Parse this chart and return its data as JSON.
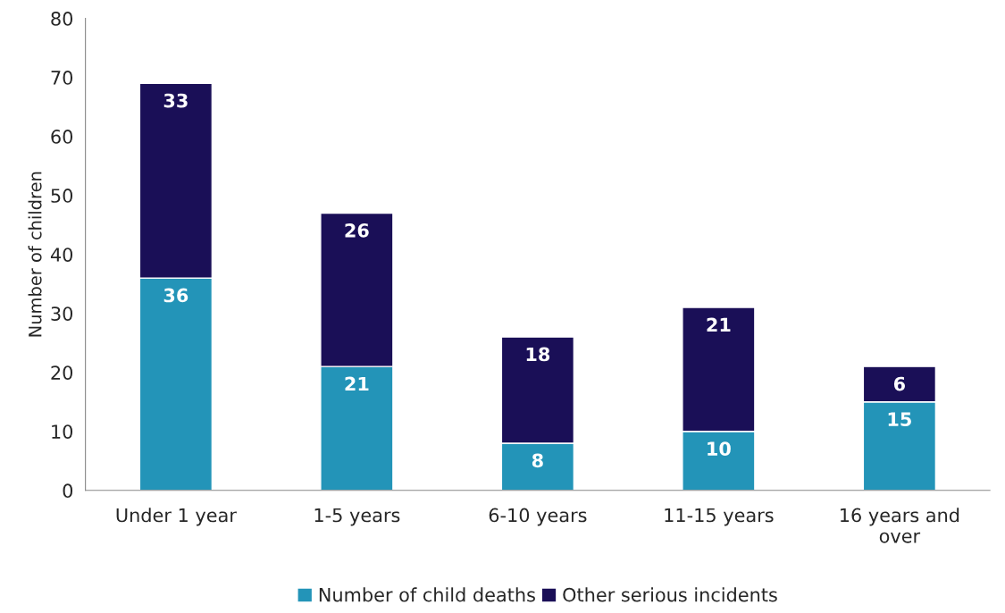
{
  "chart_data": {
    "type": "bar",
    "stacked": true,
    "ylabel": "Number of children",
    "categories": [
      "Under 1 year",
      "1-5 years",
      "6-10 years",
      "11-15 years",
      "16 years and\nover"
    ],
    "series": [
      {
        "name": "Number of child deaths",
        "color": "#2394b8",
        "values": [
          36,
          21,
          8,
          10,
          15
        ]
      },
      {
        "name": "Other serious incidents",
        "color": "#1a0f57",
        "values": [
          33,
          26,
          18,
          21,
          6
        ]
      }
    ],
    "ylim": [
      0,
      80
    ],
    "yticks": [
      0,
      10,
      20,
      30,
      40,
      50,
      60,
      70,
      80
    ],
    "grid": false,
    "legend": "bottom",
    "data_labels": true
  }
}
